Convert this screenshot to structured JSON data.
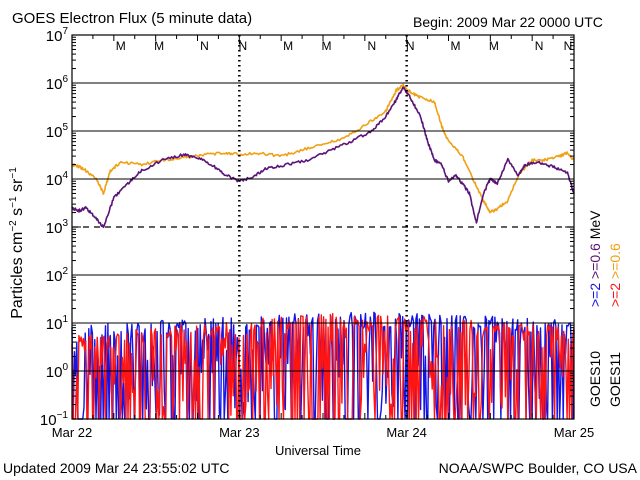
{
  "header": {
    "title": "GOES Electron Flux (5 minute data)",
    "begin": "Begin: 2009 Mar 22 0000 UTC"
  },
  "footer": {
    "updated": "Updated 2009 Mar 24 23:55:02 UTC",
    "credit": "NOAA/SWPC Boulder, CO USA"
  },
  "colors": {
    "background": "#ffffff",
    "axis": "#000000",
    "goes10_ge2": "#1414e6",
    "goes11_ge2": "#ff1414",
    "goes10_ge06": "#5a1478",
    "goes11_ge06": "#f0a014"
  },
  "chart_data": {
    "type": "line",
    "title": "GOES Electron Flux (5 minute data)",
    "xlabel": "Universal Time",
    "ylabel": "Particles cm^-2 s^-1 sr^-1",
    "yscale": "log",
    "ylim": [
      0.1,
      10000000
    ],
    "xlim": [
      0,
      72
    ],
    "x_unit": "hours since 2009 Mar 22 0000 UTC",
    "x_ticks": [
      {
        "x": 0,
        "label": "Mar 22"
      },
      {
        "x": 24,
        "label": "Mar 23"
      },
      {
        "x": 48,
        "label": "Mar 24"
      },
      {
        "x": 72,
        "label": "Mar 25"
      }
    ],
    "y_ticks": [
      {
        "exp": -1,
        "base": "10",
        "sup": "−1"
      },
      {
        "exp": 0,
        "base": "10",
        "sup": "0"
      },
      {
        "exp": 1,
        "base": "10",
        "sup": "1"
      },
      {
        "exp": 2,
        "base": "10",
        "sup": "2"
      },
      {
        "exp": 3,
        "base": "10",
        "sup": "3"
      },
      {
        "exp": 4,
        "base": "10",
        "sup": "4"
      },
      {
        "exp": 5,
        "base": "10",
        "sup": "5"
      },
      {
        "exp": 6,
        "base": "10",
        "sup": "6"
      },
      {
        "exp": 7,
        "base": "10",
        "sup": "7"
      }
    ],
    "solid_gridlines": [
      1,
      10,
      100,
      10000,
      100000,
      1000000
    ],
    "dashed_threshold": 1000,
    "day_boundaries": [
      24,
      48
    ],
    "markers": [
      {
        "x": 7,
        "label": "M",
        "color": "#1414e6"
      },
      {
        "x": 12.5,
        "label": "M",
        "color": "#ff1414"
      },
      {
        "x": 19,
        "label": "N",
        "color": "#1414e6"
      },
      {
        "x": 24.5,
        "label": "N",
        "color": "#ff1414"
      },
      {
        "x": 31,
        "label": "M",
        "color": "#1414e6"
      },
      {
        "x": 36.5,
        "label": "M",
        "color": "#ff1414"
      },
      {
        "x": 43,
        "label": "N",
        "color": "#1414e6"
      },
      {
        "x": 48.5,
        "label": "N",
        "color": "#ff1414"
      },
      {
        "x": 55,
        "label": "M",
        "color": "#1414e6"
      },
      {
        "x": 60.5,
        "label": "M",
        "color": "#ff1414"
      },
      {
        "x": 67,
        "label": "N",
        "color": "#1414e6"
      },
      {
        "x": 72.5,
        "label": "N",
        "color": "#ff1414"
      }
    ],
    "series": [
      {
        "name": "GOES11 >=0.6 MeV",
        "color": "#f0a014",
        "kind": "smooth",
        "x": [
          0,
          1,
          2,
          3.5,
          4.5,
          5.5,
          7,
          10,
          13,
          16,
          19,
          22,
          24,
          27,
          30,
          33,
          36,
          39,
          42,
          45,
          46.5,
          47.5,
          48.5,
          50,
          52,
          53,
          54,
          56,
          57.5,
          59,
          60,
          61,
          62.5,
          64,
          66,
          68,
          70,
          71,
          72
        ],
        "y": [
          20000,
          18000,
          15000,
          10000,
          5000,
          15000,
          22000,
          20000,
          25000,
          28000,
          32000,
          35000,
          33000,
          34000,
          30000,
          40000,
          55000,
          70000,
          130000,
          260000,
          700000,
          900000,
          650000,
          500000,
          400000,
          130000,
          60000,
          30000,
          10000,
          3500,
          2000,
          2400,
          3500,
          12000,
          25000,
          25000,
          30000,
          35000,
          25000
        ]
      },
      {
        "name": "GOES10 >=0.6 MeV",
        "color": "#5a1478",
        "kind": "smooth",
        "x": [
          0,
          1,
          2,
          3,
          4.5,
          6,
          8,
          10,
          13,
          16,
          18,
          20,
          22,
          24,
          26,
          28,
          31,
          34,
          37,
          40,
          43,
          45,
          46.5,
          47.5,
          48.5,
          50,
          51,
          52,
          53,
          54,
          55,
          56,
          57,
          58,
          59,
          60,
          61,
          62.5,
          64,
          65,
          67,
          69,
          71,
          72
        ],
        "y": [
          2500,
          2200,
          2500,
          1800,
          1000,
          4000,
          8000,
          15000,
          25000,
          32000,
          28000,
          20000,
          12000,
          9000,
          11000,
          17000,
          20000,
          25000,
          40000,
          60000,
          100000,
          200000,
          450000,
          800000,
          500000,
          200000,
          60000,
          25000,
          20000,
          9000,
          12000,
          8000,
          5000,
          1200,
          5000,
          10000,
          8000,
          25000,
          12000,
          20000,
          22000,
          18000,
          14000,
          5000
        ]
      },
      {
        "name": "GOES10 >=2 MeV",
        "color": "#1414e6",
        "kind": "noise",
        "seed": 7,
        "points": 420,
        "x_start": 0,
        "x_end": 72,
        "base": [
          [
            0,
            3
          ],
          [
            12,
            4
          ],
          [
            24,
            5
          ],
          [
            36,
            6
          ],
          [
            48,
            6
          ],
          [
            60,
            5
          ],
          [
            72,
            4
          ]
        ],
        "floor": 0.1,
        "top_frac": 0.45
      },
      {
        "name": "GOES11 >=2 MeV",
        "color": "#ff1414",
        "kind": "noise",
        "seed": 23,
        "points": 440,
        "x_start": 0,
        "x_end": 72,
        "base": [
          [
            0,
            2
          ],
          [
            12,
            3
          ],
          [
            24,
            4
          ],
          [
            36,
            6
          ],
          [
            48,
            5
          ],
          [
            60,
            4
          ],
          [
            72,
            3
          ]
        ],
        "floor": 0.1,
        "top_frac": 0.5
      }
    ],
    "right_labels": [
      {
        "parts": [
          {
            "text": ">=2",
            "color": "#1414e6"
          },
          {
            "text": " >=0.6",
            "color": "#5a1478"
          },
          {
            "text": "  MeV",
            "color": "#000000"
          }
        ]
      },
      {
        "parts": [
          {
            "text": ">=2",
            "color": "#ff1414"
          },
          {
            "text": " >=0.6",
            "color": "#f0a014"
          }
        ]
      }
    ],
    "satellites": [
      "GOES10",
      "GOES11"
    ]
  }
}
